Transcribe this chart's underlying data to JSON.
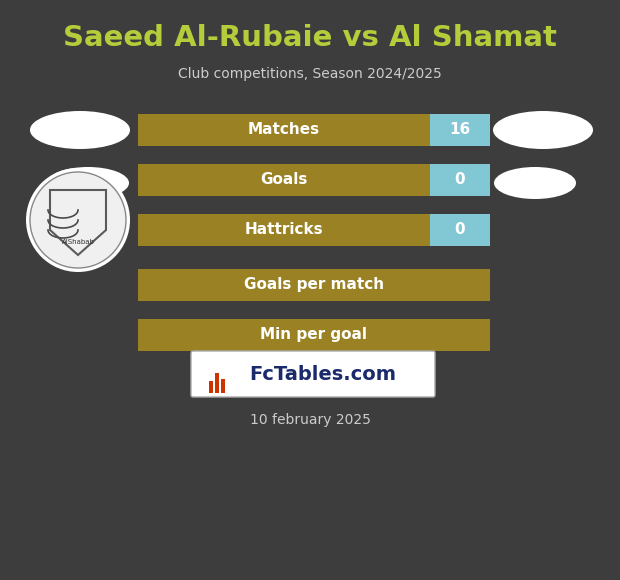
{
  "title": "Saeed Al-Rubaie vs Al Shamat",
  "subtitle": "Club competitions, Season 2024/2025",
  "date": "10 february 2025",
  "watermark": " FcTables.com",
  "background_color": "#3d3d3d",
  "title_color": "#b5cc3b",
  "subtitle_color": "#cccccc",
  "date_color": "#cccccc",
  "bar_bg_color": "#9a8224",
  "bar_highlight_color": "#82c8d4",
  "bar_text_color": "#ffffff",
  "rows": [
    {
      "label": "Matches",
      "value": "16",
      "has_value": true
    },
    {
      "label": "Goals",
      "value": "0",
      "has_value": true
    },
    {
      "label": "Hattricks",
      "value": "0",
      "has_value": true
    },
    {
      "label": "Goals per match",
      "value": "",
      "has_value": false
    },
    {
      "label": "Min per goal",
      "value": "",
      "has_value": false
    }
  ]
}
